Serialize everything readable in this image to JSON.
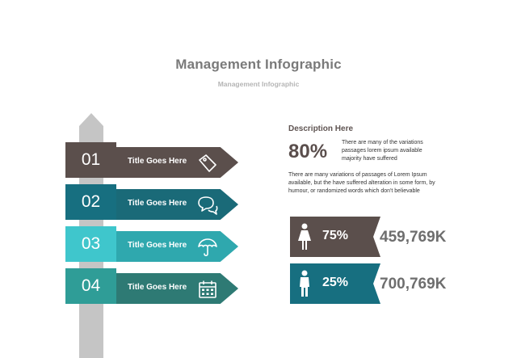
{
  "header": {
    "title": "Management Infographic",
    "subtitle": "Management Infographic"
  },
  "signs": [
    {
      "number": "01",
      "title": "Title Goes Here",
      "icon": "tag-icon",
      "tab_color": "#5b4f4c",
      "arrow_color": "#5b4f4c"
    },
    {
      "number": "02",
      "title": "Title Goes Here",
      "icon": "chat-icon",
      "tab_color": "#176f80",
      "arrow_color": "#1a6a78"
    },
    {
      "number": "03",
      "title": "Title Goes Here",
      "icon": "umbrella-icon",
      "tab_color": "#3fc6cc",
      "arrow_color": "#2fa8ae"
    },
    {
      "number": "04",
      "title": "Title Goes Here",
      "icon": "calendar-icon",
      "tab_color": "#2f9d97",
      "arrow_color": "#2e7a74"
    }
  ],
  "description": {
    "heading": "Description Here",
    "highlight_percent": "80%",
    "highlight_text": "There are many of the variations passages lorem ipsum available majority have suffered",
    "paragraph": "There are many variations of passages  of Lorem Ipsum available, but the have suffered alteration in some  form, by humour, or randomized words  which  don't believable"
  },
  "stats": [
    {
      "icon": "female-icon",
      "percent": "75%",
      "value": "459,769K",
      "color": "#5b4f4c"
    },
    {
      "icon": "male-icon",
      "percent": "25%",
      "value": "700,769K",
      "color": "#176f80"
    }
  ]
}
